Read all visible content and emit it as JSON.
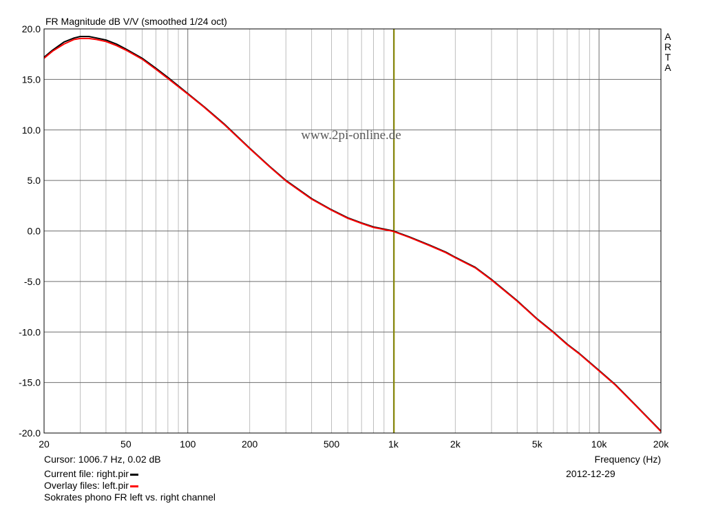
{
  "chart_data": {
    "type": "line",
    "title": "FR Magnitude dB V/V (smoothed 1/24 oct)",
    "xlabel": "Frequency (Hz)",
    "ylabel": "",
    "x_scale": "log",
    "xlim": [
      20,
      20000
    ],
    "ylim": [
      -20,
      20
    ],
    "x_ticks": [
      20,
      50,
      100,
      200,
      500,
      1000,
      2000,
      5000,
      10000,
      20000
    ],
    "x_tick_labels": [
      "20",
      "50",
      "100",
      "200",
      "500",
      "1k",
      "2k",
      "5k",
      "10k",
      "20k"
    ],
    "y_ticks": [
      20,
      15,
      10,
      5,
      0,
      -5,
      -10,
      -15,
      -20
    ],
    "y_tick_labels": [
      "20.0",
      "15.0",
      "10.0",
      "5.0",
      "0.0",
      "-5.0",
      "-10.0",
      "-15.0",
      "-20.0"
    ],
    "grid": true,
    "cursor_x": 1006.7,
    "series": [
      {
        "name": "right.pir",
        "color": "#000000",
        "x": [
          20,
          22,
          25,
          28,
          30,
          33,
          36,
          40,
          45,
          50,
          60,
          70,
          80,
          100,
          120,
          150,
          200,
          250,
          300,
          400,
          500,
          600,
          700,
          800,
          1000,
          1200,
          1500,
          1800,
          2000,
          2500,
          3000,
          4000,
          5000,
          6000,
          7000,
          8000,
          10000,
          12000,
          15000,
          20000
        ],
        "y": [
          17.2,
          17.9,
          18.7,
          19.1,
          19.25,
          19.25,
          19.1,
          18.9,
          18.5,
          18.0,
          17.1,
          16.1,
          15.2,
          13.6,
          12.3,
          10.6,
          8.2,
          6.4,
          5.0,
          3.2,
          2.1,
          1.3,
          0.8,
          0.4,
          0.0,
          -0.6,
          -1.4,
          -2.1,
          -2.6,
          -3.6,
          -4.8,
          -6.9,
          -8.7,
          -10.0,
          -11.2,
          -12.1,
          -13.8,
          -15.2,
          -17.2,
          -19.8
        ]
      },
      {
        "name": "left.pir",
        "color": "#ff0000",
        "x": [
          20,
          22,
          25,
          28,
          30,
          33,
          36,
          40,
          45,
          50,
          60,
          70,
          80,
          100,
          120,
          150,
          200,
          250,
          300,
          400,
          500,
          600,
          700,
          800,
          1000,
          1200,
          1500,
          1800,
          2000,
          2500,
          3000,
          4000,
          5000,
          6000,
          7000,
          8000,
          10000,
          12000,
          15000,
          20000
        ],
        "y": [
          17.1,
          17.8,
          18.5,
          18.95,
          19.05,
          19.05,
          18.95,
          18.75,
          18.35,
          17.9,
          17.0,
          16.0,
          15.1,
          13.55,
          12.25,
          10.55,
          8.15,
          6.35,
          4.95,
          3.15,
          2.05,
          1.25,
          0.75,
          0.35,
          -0.05,
          -0.65,
          -1.45,
          -2.15,
          -2.65,
          -3.65,
          -4.85,
          -6.95,
          -8.75,
          -10.05,
          -11.25,
          -12.15,
          -13.85,
          -15.25,
          -17.25,
          -19.85
        ]
      }
    ],
    "side_label": [
      "A",
      "R",
      "T",
      "A"
    ],
    "watermark": "www.2pi-online.de"
  },
  "footer": {
    "cursor": "Cursor: 1006.7 Hz, 0.02 dB",
    "current_file": "Current file: right.pir",
    "overlay_files": "Overlay files: left.pir",
    "description": "Sokrates phono FR left vs. right channel",
    "date": "2012-12-29"
  },
  "colors": {
    "grid": "#bdbdbd",
    "cursor": "#8c8c00",
    "current_swatch": "#000000",
    "overlay_swatch": "#ff0000"
  }
}
